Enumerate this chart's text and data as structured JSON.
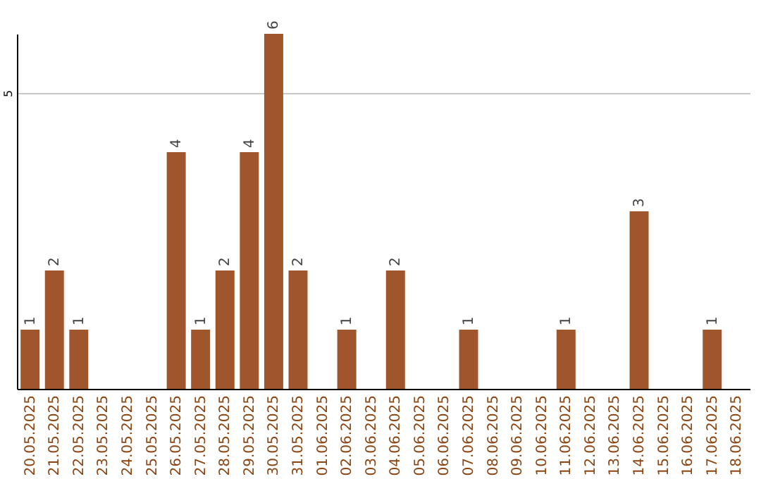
{
  "chart_data": {
    "type": "bar",
    "categories": [
      "20.05.2025",
      "21.05.2025",
      "22.05.2025",
      "23.05.2025",
      "24.05.2025",
      "25.05.2025",
      "26.05.2025",
      "27.05.2025",
      "28.05.2025",
      "29.05.2025",
      "30.05.2025",
      "31.05.2025",
      "01.06.2025",
      "02.06.2025",
      "03.06.2025",
      "04.06.2025",
      "05.06.2025",
      "06.06.2025",
      "07.06.2025",
      "08.06.2025",
      "09.06.2025",
      "10.06.2025",
      "11.06.2025",
      "12.06.2025",
      "13.06.2025",
      "14.06.2025",
      "15.06.2025",
      "16.06.2025",
      "17.06.2025",
      "18.06.2025"
    ],
    "values": [
      1,
      2,
      1,
      0,
      0,
      0,
      4,
      1,
      2,
      4,
      6,
      2,
      0,
      1,
      0,
      2,
      0,
      0,
      1,
      0,
      0,
      0,
      1,
      0,
      0,
      3,
      0,
      0,
      1,
      0
    ],
    "value_labels": [
      "1",
      "2",
      "1",
      null,
      null,
      null,
      "4",
      "1",
      "2",
      "4",
      "6",
      "2",
      null,
      "1",
      null,
      "2",
      null,
      null,
      "1",
      null,
      null,
      null,
      "1",
      null,
      null,
      "3",
      null,
      null,
      "1",
      null
    ],
    "color": "#a0562c",
    "ylim": [
      0,
      6
    ],
    "yticks": [
      {
        "value": 0,
        "label": null
      },
      5
    ],
    "grid": "y"
  }
}
